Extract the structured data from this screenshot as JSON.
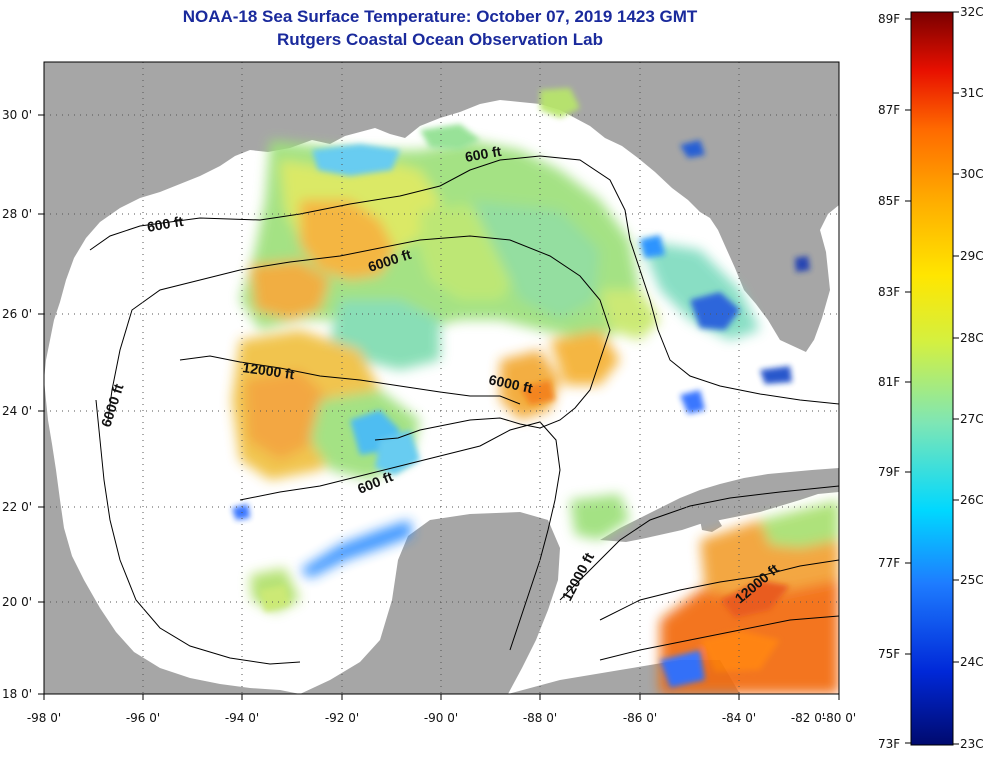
{
  "header": {
    "title": "NOAA-18 Sea Surface Temperature:  October 07, 2019 1423 GMT",
    "subtitle": "Rutgers Coastal Ocean Observation Lab"
  },
  "axes": {
    "lat_labels": [
      "30 0'",
      "28 0'",
      "26 0'",
      "24 0'",
      "22 0'",
      "20 0'",
      "18 0'"
    ],
    "lon_labels": [
      "-98 0'",
      "-96 0'",
      "-94 0'",
      "-92 0'",
      "-90 0'",
      "-88 0'",
      "-86 0'",
      "-84 0'",
      "-82 0'",
      "-80 0'"
    ]
  },
  "contour_labels": [
    "600 ft",
    "600 ft",
    "6000 ft",
    "12000 ft",
    "6000 ft",
    "6000 ft",
    "600 ft",
    "12000 ft",
    "12000 ft"
  ],
  "colorbar": {
    "fahrenheit": [
      "89F",
      "87F",
      "85F",
      "83F",
      "81F",
      "79F",
      "77F",
      "75F",
      "73F"
    ],
    "celsius": [
      "32C",
      "31C",
      "30C",
      "29C",
      "28C",
      "27C",
      "26C",
      "25C",
      "24C",
      "23C"
    ]
  },
  "colors": {
    "title": "#1a2a9c",
    "land": "#a6a6a6",
    "water": "#ffffff"
  }
}
